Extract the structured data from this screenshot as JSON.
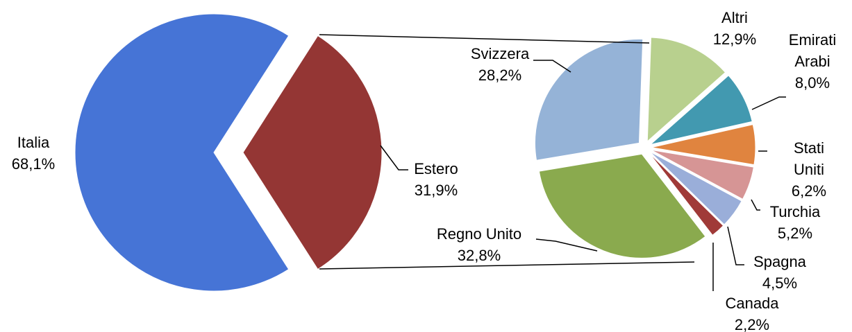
{
  "chart_data": [
    {
      "type": "pie",
      "categories": [
        "Italia",
        "Estero"
      ],
      "values": [
        68.1,
        31.9
      ],
      "value_labels": [
        "68,1%",
        "31,9%"
      ],
      "colors": [
        "#4674d6",
        "#943634"
      ]
    },
    {
      "type": "pie",
      "categories": [
        "Altri",
        "Emirati Arabi",
        "Stati Uniti",
        "Turchia",
        "Spagna",
        "Canada",
        "Regno Unito",
        "Svizzera"
      ],
      "values": [
        12.9,
        8.0,
        6.2,
        5.2,
        4.5,
        2.2,
        32.8,
        28.2
      ],
      "value_labels": [
        "12,9%",
        "8,0%",
        "6,2%",
        "5,2%",
        "4,5%",
        "2,2%",
        "32,8%",
        "28,2%"
      ],
      "colors": [
        "#b8d08e",
        "#4299b0",
        "#e0843f",
        "#d69595",
        "#9aaed9",
        "#a03a38",
        "#8aaa4e",
        "#95b3d7"
      ]
    }
  ]
}
